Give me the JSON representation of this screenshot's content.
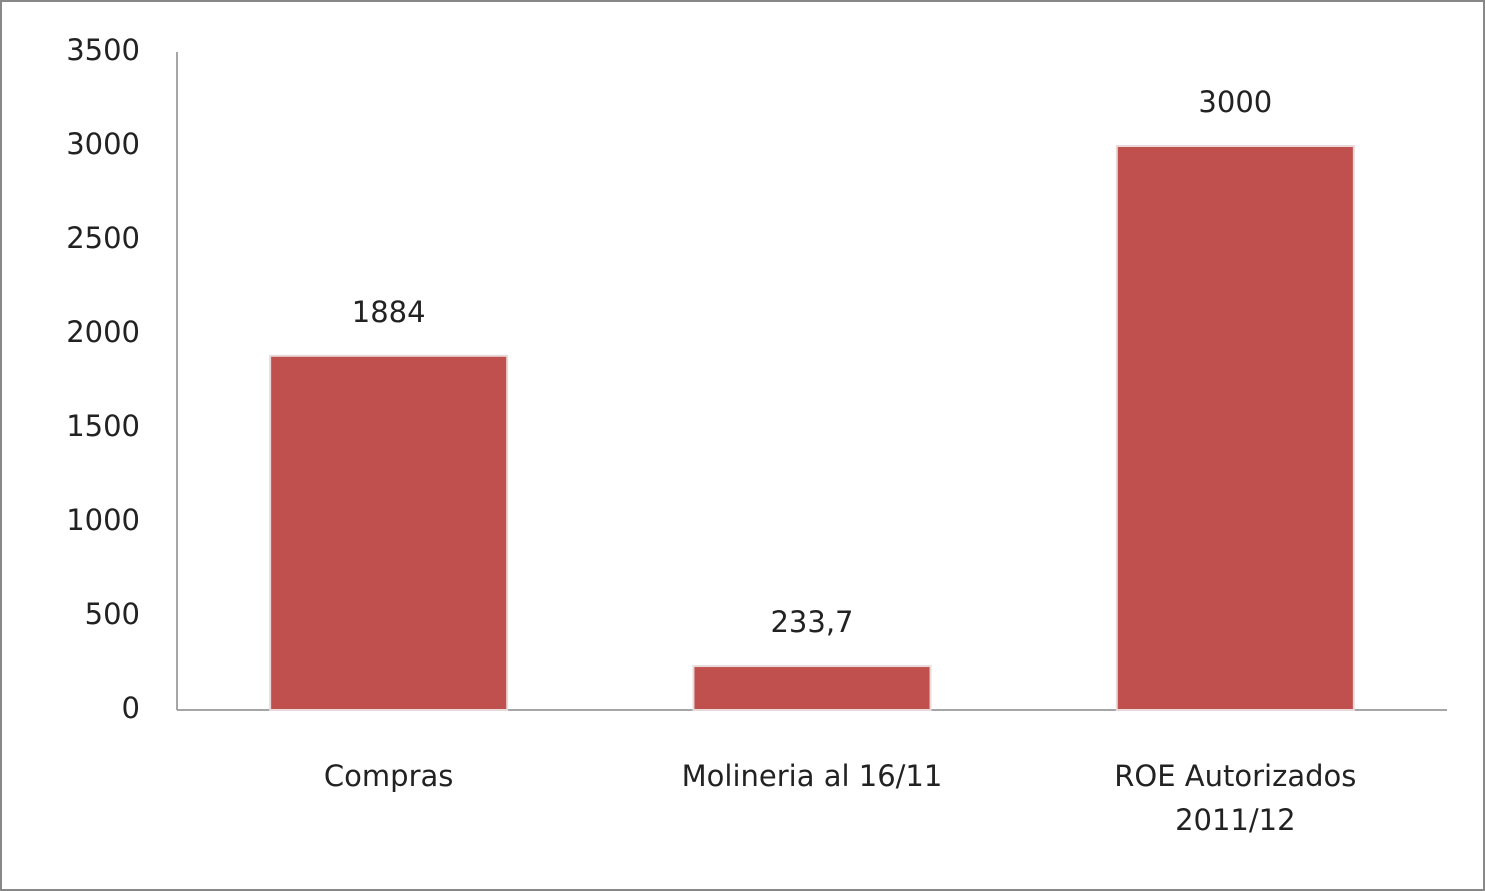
{
  "chart_data": {
    "type": "bar",
    "categories": [
      "Compras",
      "Molineria al 16/11",
      "ROE Autorizados 2011/12"
    ],
    "values": [
      1884,
      233.7,
      3000
    ],
    "value_labels": [
      "1884",
      "233,7",
      "3000"
    ],
    "color": "#c0504d",
    "ylim": [
      0,
      3500
    ],
    "yticks": [
      0,
      500,
      1000,
      1500,
      2000,
      2500,
      3000,
      3500
    ],
    "grid": false
  }
}
